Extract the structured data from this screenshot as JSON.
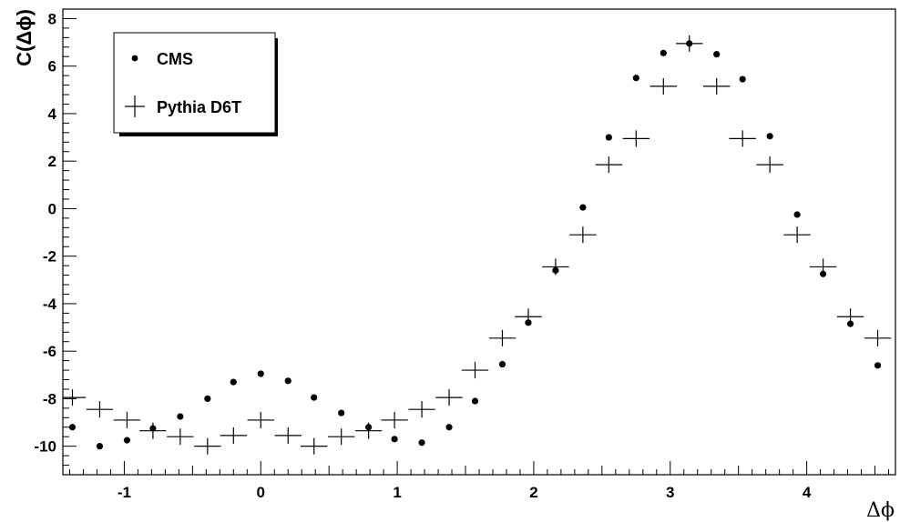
{
  "chart_data": {
    "type": "scatter",
    "title": "",
    "xlabel": "Δϕ",
    "ylabel": "C(Δϕ)",
    "xlim": [
      -1.45,
      4.65
    ],
    "ylim": [
      -11.2,
      8.4
    ],
    "grid": false,
    "legend_position": "top-left",
    "x_ticks": [
      -1,
      0,
      1,
      2,
      3,
      4
    ],
    "x_tick_labels": [
      "-1",
      "0",
      "1",
      "2",
      "3",
      "4"
    ],
    "y_ticks": [
      -10,
      -8,
      -6,
      -4,
      -2,
      0,
      2,
      4,
      6,
      8
    ],
    "y_tick_labels": [
      "-10",
      "-8",
      "-6",
      "-4",
      "-2",
      "0",
      "2",
      "4",
      "6",
      "8"
    ],
    "x": [
      -1.38,
      -1.18,
      -0.98,
      -0.79,
      -0.59,
      -0.39,
      -0.2,
      0.0,
      0.2,
      0.39,
      0.59,
      0.79,
      0.98,
      1.18,
      1.38,
      1.57,
      1.77,
      1.96,
      2.16,
      2.36,
      2.55,
      2.75,
      2.95,
      3.14,
      3.34,
      3.53,
      3.73,
      3.93,
      4.12,
      4.32,
      4.52
    ],
    "series": [
      {
        "name": "CMS",
        "marker": "dot",
        "values": [
          -9.2,
          -10.0,
          -9.75,
          -9.25,
          -8.75,
          -8.0,
          -7.3,
          -6.95,
          -7.25,
          -7.95,
          -8.6,
          -9.2,
          -9.7,
          -9.85,
          -9.2,
          -8.1,
          -6.55,
          -4.8,
          -2.6,
          0.05,
          3.0,
          5.5,
          6.55,
          6.95,
          6.5,
          5.45,
          3.05,
          -0.25,
          -2.75,
          -4.85,
          -6.6
        ]
      },
      {
        "name": "Pythia D6T",
        "marker": "cross",
        "values": [
          -7.95,
          -8.45,
          -8.9,
          -9.35,
          -9.6,
          -10.0,
          -9.55,
          -8.9,
          -9.55,
          -10.0,
          -9.6,
          -9.35,
          -8.9,
          -8.45,
          -7.95,
          -6.8,
          -5.45,
          -4.55,
          -2.45,
          -1.1,
          1.85,
          2.95,
          5.15,
          6.95,
          5.15,
          2.95,
          1.85,
          -1.1,
          -2.45,
          -4.55,
          -5.45
        ]
      }
    ],
    "colors": {
      "background": "#ffffff",
      "marker": "#000000",
      "frame": "#000000"
    }
  }
}
